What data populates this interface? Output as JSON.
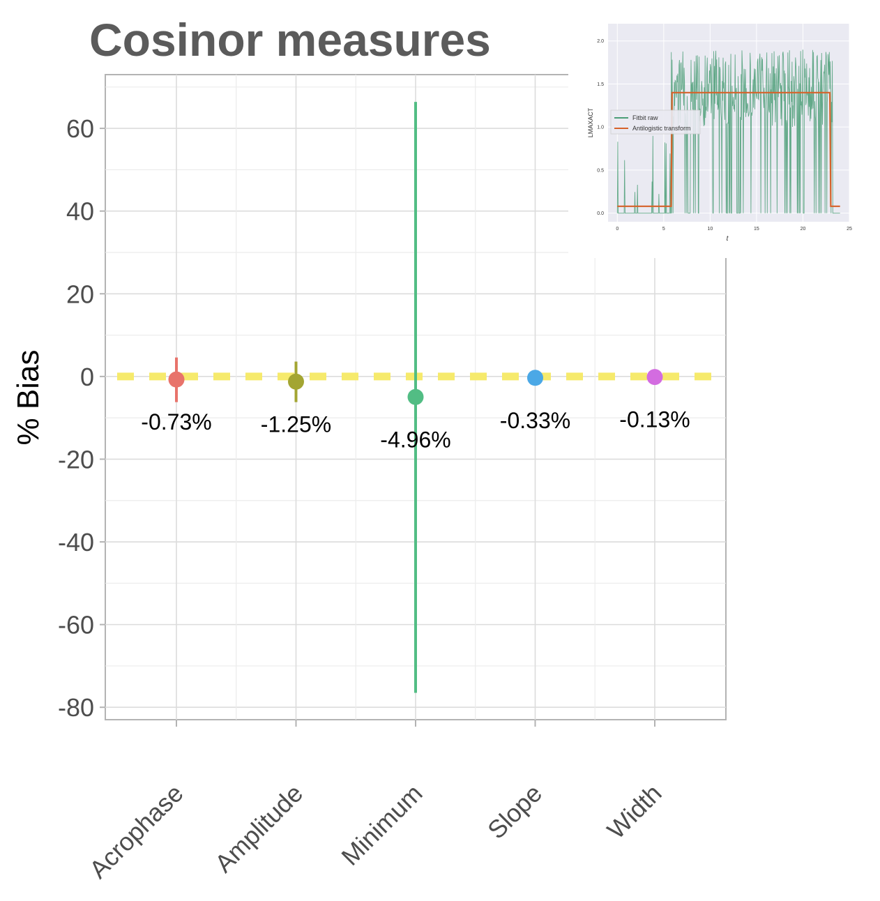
{
  "chart_data": [
    {
      "type": "scatter",
      "title": "Cosinor measures",
      "xlabel": "",
      "ylabel": "% Bias",
      "ylim": [
        -83,
        73
      ],
      "y_ticks": [
        60,
        40,
        20,
        0,
        -20,
        -40,
        -60,
        -80
      ],
      "y_tick_labels": [
        "60",
        "40",
        "20",
        "0",
        "-20",
        "-40",
        "-60",
        "-80"
      ],
      "grid": true,
      "categories": [
        "Acrophase",
        "Amplitude",
        "Minimum",
        "Slope",
        "Width"
      ],
      "values": [
        -0.73,
        -1.25,
        -4.96,
        -0.33,
        -0.13
      ],
      "error_bars": [
        {
          "low": -6.2,
          "high": 4.6
        },
        {
          "low": -6.2,
          "high": 3.6
        },
        {
          "low": -76.5,
          "high": 66.4
        },
        {
          "low": -0.5,
          "high": -0.2
        },
        {
          "low": -0.3,
          "high": 0.0
        }
      ],
      "point_labels": [
        "-0.73%",
        "-1.25%",
        "-4.96%",
        "-0.33%",
        "-0.13%"
      ],
      "colors": [
        "#e8736b",
        "#a3a532",
        "#52bd84",
        "#4ba8e6",
        "#d36ce0"
      ],
      "reference_line": {
        "y": 0,
        "style": "dashed",
        "color": "#f6ea6c"
      }
    },
    {
      "type": "line",
      "xlabel": "t",
      "ylabel": "LMAXACT",
      "xlim": [
        -1,
        25
      ],
      "ylim": [
        -0.1,
        2.2
      ],
      "x_ticks": [
        "0",
        "5",
        "10",
        "15",
        "20",
        "25"
      ],
      "y_ticks": [
        "0.0",
        "0.5",
        "1.0",
        "1.5",
        "2.0"
      ],
      "legend_position": "middle-left",
      "series": [
        {
          "name": "Fitbit raw",
          "color": "#4b9e77",
          "x": [
            0,
            5.8,
            6.0,
            23.0,
            23.2,
            24
          ],
          "y": [
            0.0,
            0.0,
            1.9,
            1.9,
            0.0,
            0.0
          ]
        },
        {
          "name": "Antilogistic transform",
          "color": "#d6622a",
          "x": [
            0,
            5.8,
            5.9,
            22.9,
            23.0,
            24
          ],
          "y": [
            0.08,
            0.08,
            1.4,
            1.4,
            0.08,
            0.08
          ]
        }
      ]
    }
  ]
}
